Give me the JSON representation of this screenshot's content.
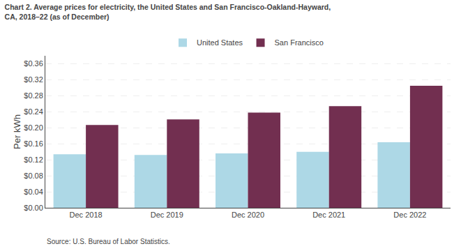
{
  "chart_data": {
    "type": "bar",
    "title": "Chart 2. Average prices for electricity, the United States and San Francisco-Oakland-Hayward,\nCA, 2018–22 (as of December)",
    "y_label": "Per kWh",
    "annotations": [
      "Source: U.S. Bureau of Labor Statistics."
    ],
    "categories": [
      "Dec 2018",
      "Dec 2019",
      "Dec 2020",
      "Dec 2021",
      "Dec 2022"
    ],
    "series": [
      {
        "name": "United States",
        "color": "#ADD8E6",
        "values": [
          0.134,
          0.132,
          0.136,
          0.14,
          0.164
        ]
      },
      {
        "name": "San Francisco",
        "color": "#722F50",
        "values": [
          0.207,
          0.221,
          0.238,
          0.254,
          0.305
        ]
      }
    ],
    "ylim": [
      0,
      0.38
    ],
    "yticks": [
      {
        "value": 0.0,
        "label": "$0.00"
      },
      {
        "value": 0.04,
        "label": "$0.04"
      },
      {
        "value": 0.08,
        "label": "$0.08"
      },
      {
        "value": 0.12,
        "label": "$0.12"
      },
      {
        "value": 0.16,
        "label": "$0.16"
      },
      {
        "value": 0.2,
        "label": "$0.20"
      },
      {
        "value": 0.24,
        "label": "$0.24"
      },
      {
        "value": 0.28,
        "label": "$0.28"
      },
      {
        "value": 0.32,
        "label": "$0.32"
      },
      {
        "value": 0.36,
        "label": "$0.36"
      }
    ],
    "grid": true,
    "legend": "top"
  }
}
